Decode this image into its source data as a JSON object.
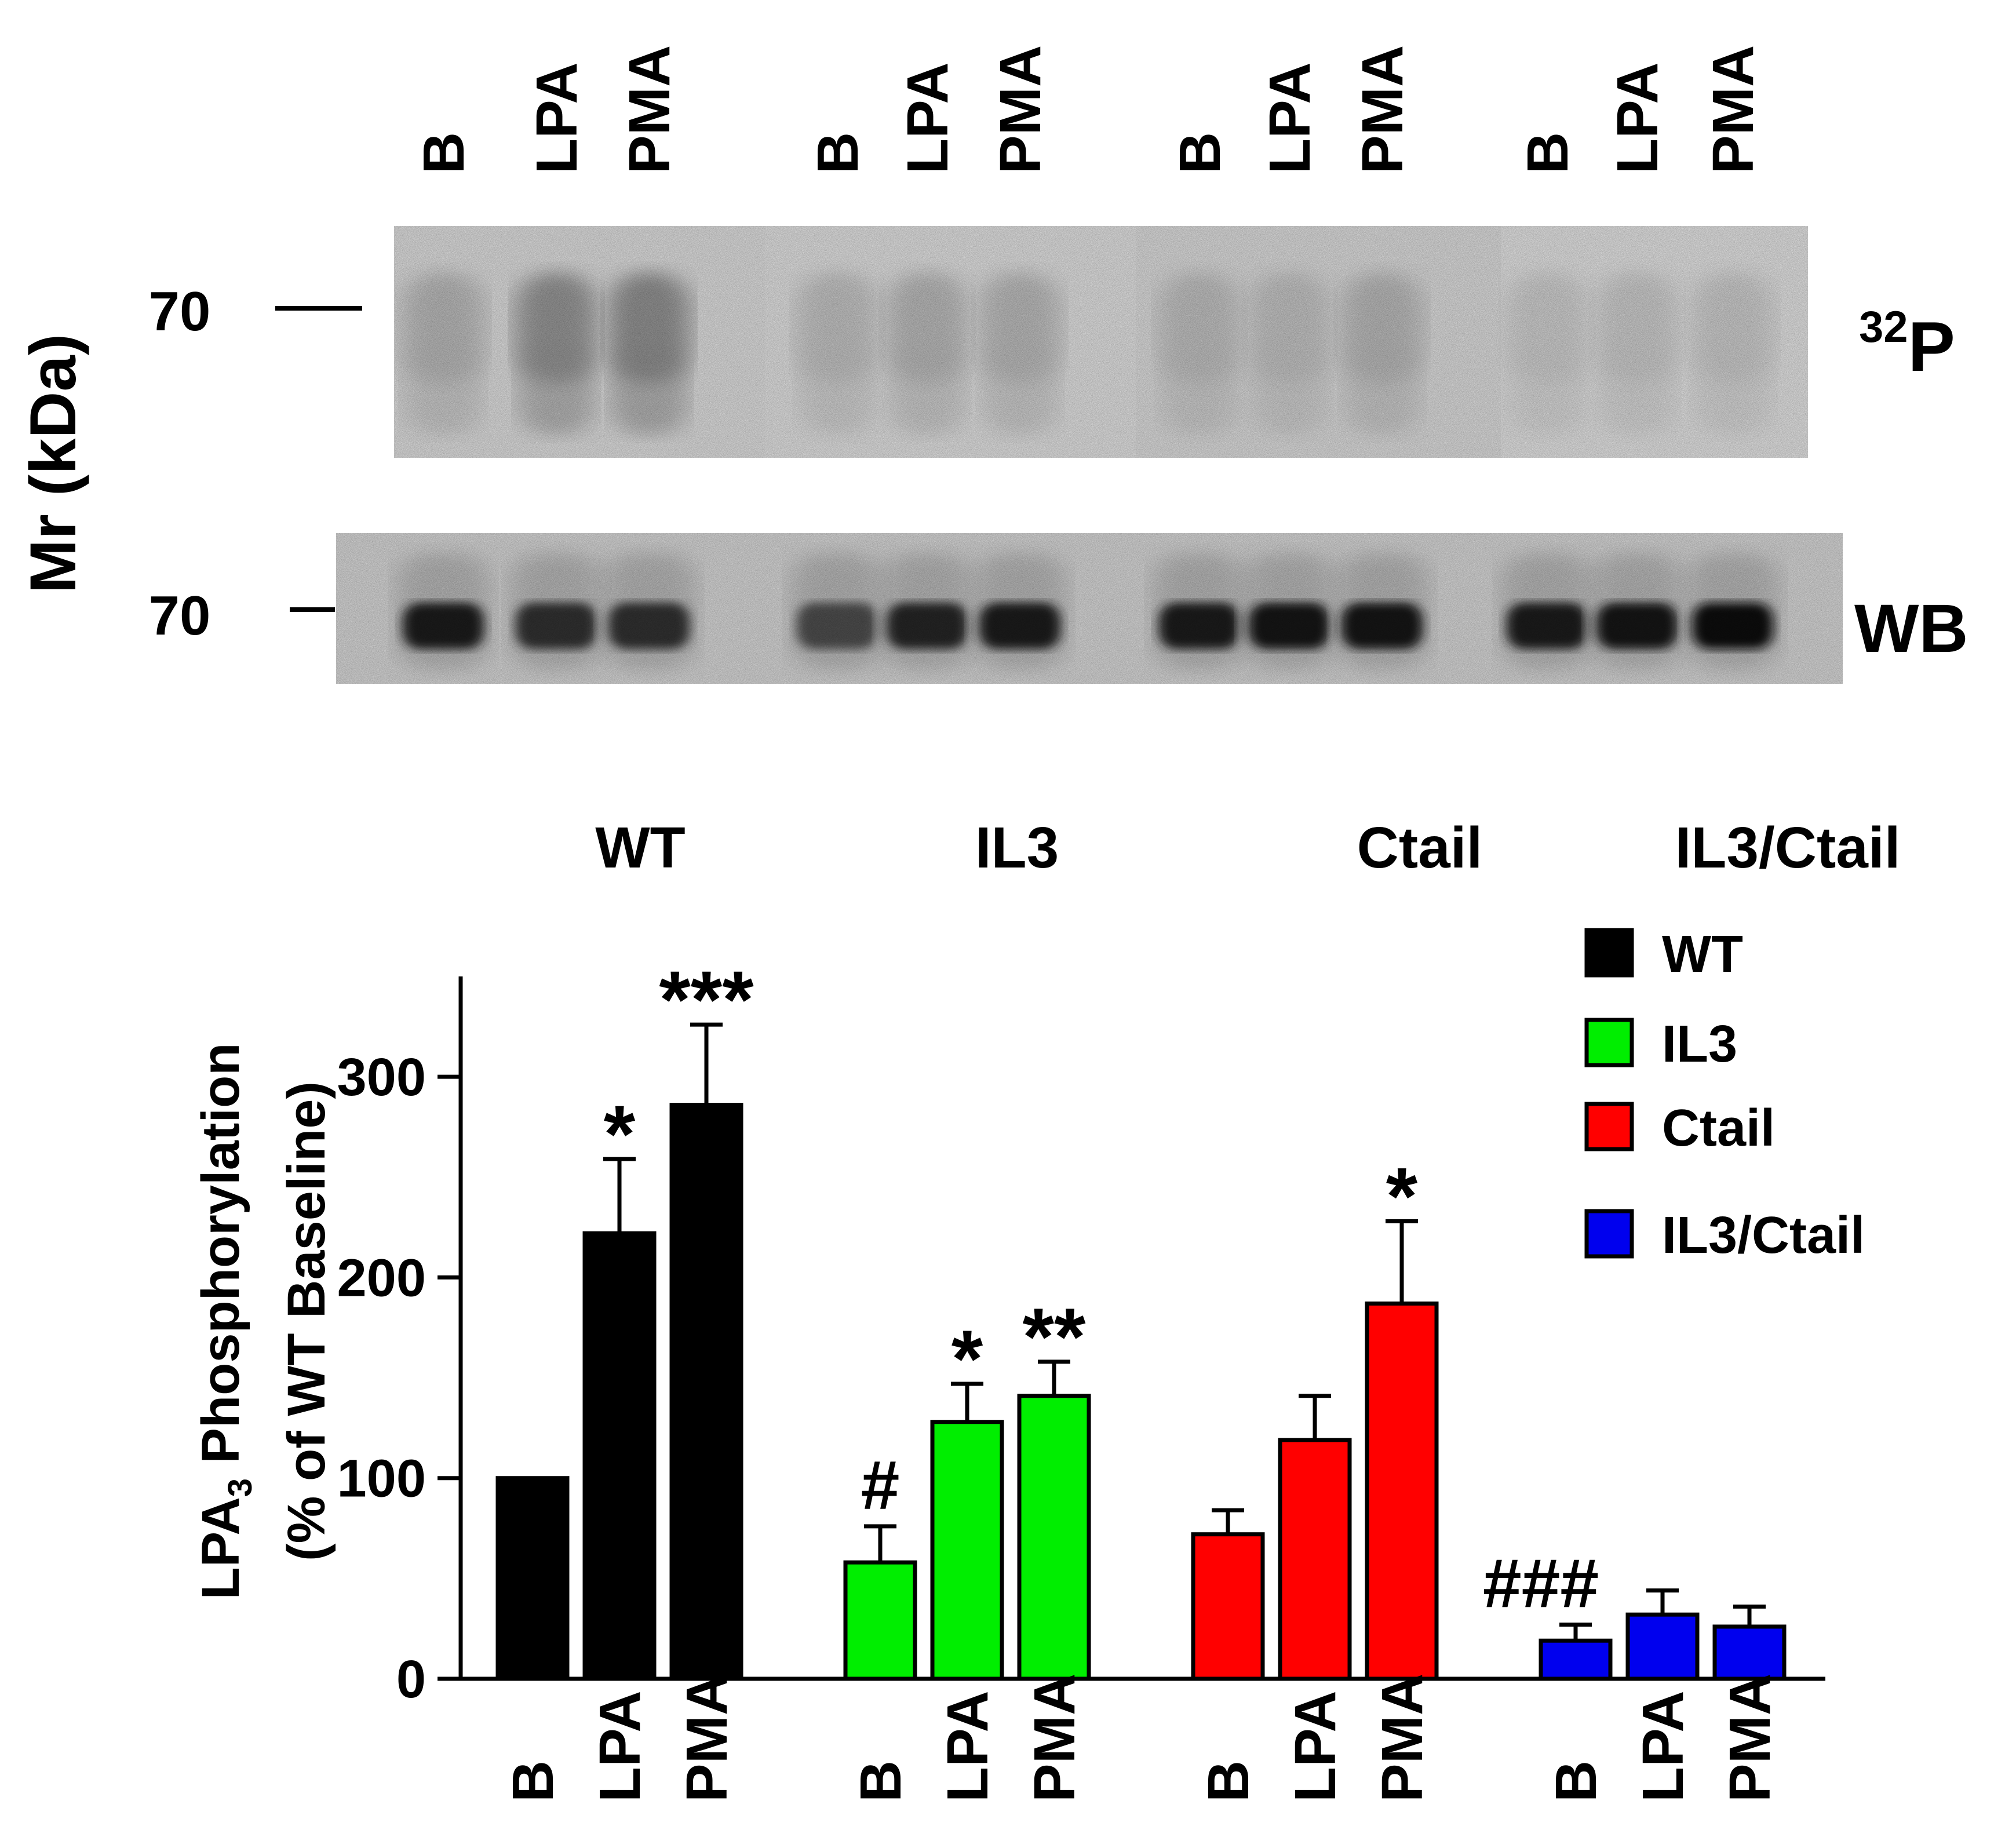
{
  "blot": {
    "lane_labels": [
      "B",
      "LPA",
      "PMA",
      "B",
      "LPA",
      "PMA",
      "B",
      "LPA",
      "PMA",
      "B",
      "LPA",
      "PMA"
    ],
    "y_axis_label": "Mr (kDa)",
    "marker_top": "70",
    "marker_bottom": "70",
    "label_32p_sup": "32",
    "label_32p_main": "P",
    "label_wb": "WB",
    "p32_intensity": [
      0.3,
      0.62,
      0.66,
      0.22,
      0.3,
      0.28,
      0.24,
      0.22,
      0.3,
      0.12,
      0.14,
      0.14
    ],
    "wb_intensity": [
      0.92,
      0.8,
      0.8,
      0.65,
      0.86,
      0.9,
      0.92,
      0.94,
      0.95,
      0.92,
      0.96,
      0.99
    ]
  },
  "groups": [
    "WT",
    "IL3",
    "Ctail",
    "IL3/Ctail"
  ],
  "chart_data": {
    "type": "bar",
    "y_label_main": "LPA",
    "y_label_sub": "3",
    "y_label_rest": " Phosphorylation",
    "y_label_line2": "(% of WT Baseline)",
    "ylim": [
      0,
      350
    ],
    "y_ticks": [
      0,
      100,
      200,
      300
    ],
    "categories": [
      "B",
      "LPA",
      "PMA"
    ],
    "legend_position": "top-right",
    "series": [
      {
        "name": "WT",
        "color": "#000000",
        "values": [
          100,
          222,
          286
        ],
        "errors": [
          0,
          37,
          40
        ],
        "annotations": [
          "",
          "*",
          "***"
        ]
      },
      {
        "name": "IL3",
        "color": "#00ee00",
        "values": [
          58,
          128,
          141
        ],
        "errors": [
          18,
          19,
          17
        ],
        "annotations": [
          "#",
          "*",
          "**"
        ]
      },
      {
        "name": "Ctail",
        "color": "#ff0000",
        "values": [
          72,
          119,
          187
        ],
        "errors": [
          12,
          22,
          41
        ],
        "annotations": [
          "",
          "",
          "*"
        ]
      },
      {
        "name": "IL3/Ctail",
        "color": "#0000ee",
        "values": [
          19,
          32,
          26
        ],
        "errors": [
          8,
          12,
          10
        ],
        "annotations": [
          "###",
          "",
          ""
        ]
      }
    ]
  }
}
